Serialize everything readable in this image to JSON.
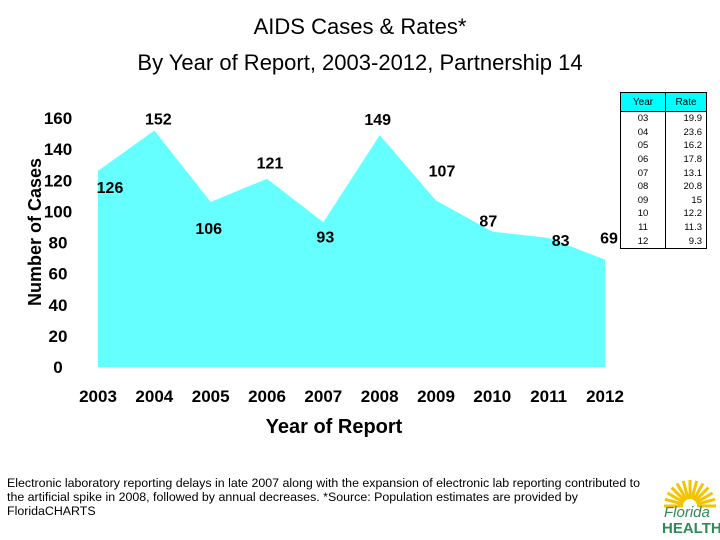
{
  "header": {
    "title_line1": "AIDS Cases & Rates*",
    "title_line2": "By Year of Report, 2003-2012, Partnership 14"
  },
  "chart_data": {
    "type": "area",
    "title": "AIDS Cases & Rates* By Year of Report, 2003-2012, Partnership 14",
    "xlabel": "Year of Report",
    "ylabel": "Number of Cases",
    "categories": [
      "2003",
      "2004",
      "2005",
      "2006",
      "2007",
      "2008",
      "2009",
      "2010",
      "2011",
      "2012"
    ],
    "values": [
      126,
      152,
      106,
      121,
      93,
      149,
      107,
      87,
      83,
      69
    ],
    "data_labels": [
      "126",
      "152",
      "106",
      "121",
      "93",
      "149",
      "107",
      "87",
      "83",
      "69"
    ],
    "ylim": [
      0,
      160
    ],
    "yticks": [
      "0",
      "20",
      "40",
      "60",
      "80",
      "100",
      "120",
      "140",
      "160"
    ],
    "fill_color": "#66ffff",
    "grid": false
  },
  "rate_table": {
    "headers": [
      "Year",
      "Rate"
    ],
    "rows": [
      [
        "03",
        "19.9"
      ],
      [
        "04",
        "23.6"
      ],
      [
        "05",
        "16.2"
      ],
      [
        "06",
        "17.8"
      ],
      [
        "07",
        "13.1"
      ],
      [
        "08",
        "20.8"
      ],
      [
        "09",
        "15"
      ],
      [
        "10",
        "12.2"
      ],
      [
        "11",
        "11.3"
      ],
      [
        "12",
        "9.3"
      ]
    ]
  },
  "footnote": "Electronic laboratory reporting delays in late 2007 along with the expansion of electronic lab reporting contributed to the artificial spike in 2008, followed by annual decreases. *Source: Population estimates are provided by FloridaCHARTS",
  "logo": {
    "line1": "Florida",
    "line2": "HEALTH",
    "color": "#2e8b57",
    "sun_color": "#f5c400"
  }
}
